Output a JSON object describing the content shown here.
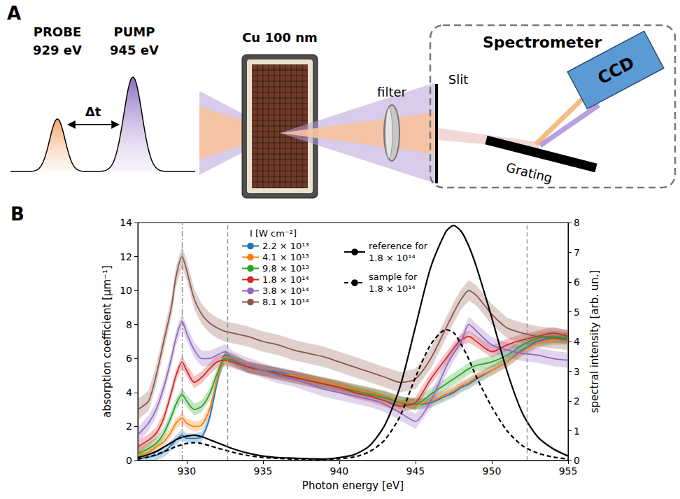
{
  "panel_a": {
    "label": "A",
    "probe": "PROBE",
    "probe_energy": "929 eV",
    "pump": "PUMP",
    "pump_energy": "945 eV",
    "delay": "Δt",
    "sample": "Cu 100 nm",
    "filter": "filter",
    "slit": "Slit",
    "spectrometer": "Spectrometer",
    "detector": "CCD",
    "grating": "Grating"
  },
  "chart_data": {
    "type": "line",
    "panel_label": "B",
    "x_label": "Photon energy [eV]",
    "y_label": "absorption coefficient [μm⁻¹]",
    "y2_label": "spectral intensity [arb. un.]",
    "legend_title": "I [W cm⁻²]",
    "legend": "top",
    "grid": false,
    "xlim": [
      926.8,
      955
    ],
    "xticks": [
      930,
      935,
      940,
      945,
      950,
      955
    ],
    "ylim": [
      0,
      14
    ],
    "yticks": [
      0,
      2,
      4,
      6,
      8,
      10,
      12,
      14
    ],
    "y2lim": [
      0,
      8
    ],
    "y2ticks": [
      0,
      1,
      2,
      3,
      4,
      5,
      6,
      7,
      8
    ],
    "vlines": [
      {
        "x": 929.7,
        "line_style": "dashdot"
      },
      {
        "x": 932.7,
        "line_style": "dashed"
      },
      {
        "x": 952.3,
        "line_style": "dashed"
      }
    ],
    "x": [
      926.8,
      927.5,
      928,
      928.5,
      929,
      929.3,
      929.7,
      930,
      930.5,
      931,
      931.5,
      932,
      932.5,
      933,
      934,
      935,
      936,
      937,
      938,
      939,
      940,
      941,
      942,
      943,
      944,
      945,
      946,
      947,
      947.5,
      948,
      948.5,
      949,
      950,
      951,
      952,
      953,
      954,
      955
    ],
    "series": [
      {
        "name": "2.2 × 10¹³",
        "color": "#1f77b4",
        "axis": "y",
        "line_style": "solid",
        "error": 0.3,
        "values": [
          0.1,
          0.2,
          0.3,
          0.5,
          0.9,
          1.2,
          1.5,
          1.3,
          1.3,
          1.4,
          2.5,
          4.6,
          6.2,
          6.0,
          5.5,
          5.3,
          5.2,
          5.0,
          4.8,
          4.6,
          4.4,
          4.2,
          4.0,
          3.8,
          3.5,
          3.3,
          3.4,
          3.8,
          4.0,
          4.3,
          4.5,
          4.8,
          5.3,
          5.8,
          6.5,
          7.0,
          7.2,
          7.2
        ]
      },
      {
        "name": "4.1 × 10¹³",
        "color": "#ff7f0e",
        "axis": "y",
        "line_style": "solid",
        "error": 0.3,
        "values": [
          0.3,
          0.5,
          0.8,
          1.1,
          1.7,
          2.2,
          2.5,
          2.2,
          2.0,
          2.1,
          3.0,
          4.8,
          6.1,
          6.0,
          5.5,
          5.3,
          5.1,
          5.0,
          4.8,
          4.6,
          4.4,
          4.2,
          4.0,
          3.8,
          3.5,
          3.3,
          3.5,
          3.9,
          4.1,
          4.4,
          4.6,
          4.9,
          5.3,
          5.8,
          6.4,
          6.9,
          7.1,
          7.1
        ]
      },
      {
        "name": "9.8 × 10¹³",
        "color": "#2ca02c",
        "axis": "y",
        "line_style": "solid",
        "error": 0.35,
        "values": [
          0.4,
          0.7,
          1.0,
          1.6,
          2.6,
          3.3,
          3.9,
          3.5,
          3.0,
          3.2,
          3.9,
          5.1,
          6.0,
          5.9,
          5.5,
          5.3,
          5.1,
          4.9,
          4.7,
          4.5,
          4.3,
          4.1,
          3.9,
          3.7,
          3.4,
          3.3,
          3.9,
          4.5,
          4.8,
          5.1,
          5.4,
          5.6,
          5.8,
          6.2,
          6.8,
          7.2,
          7.3,
          7.2
        ]
      },
      {
        "name": "1.8 × 10¹⁴",
        "color": "#d62728",
        "axis": "y",
        "line_style": "solid",
        "error": 0.35,
        "values": [
          0.8,
          1.2,
          1.6,
          2.5,
          4.0,
          5.0,
          5.8,
          5.3,
          4.6,
          4.9,
          5.4,
          5.8,
          5.9,
          5.8,
          5.5,
          5.3,
          5.1,
          4.9,
          4.7,
          4.5,
          4.3,
          4.0,
          3.8,
          3.5,
          3.2,
          3.4,
          4.8,
          6.0,
          6.6,
          7.1,
          7.3,
          7.0,
          6.4,
          6.8,
          7.1,
          7.3,
          7.5,
          7.3
        ]
      },
      {
        "name": "3.8 × 10¹⁴",
        "color": "#9467bd",
        "axis": "y",
        "line_style": "solid",
        "error": 0.45,
        "values": [
          1.5,
          2.2,
          3.0,
          4.3,
          6.0,
          7.2,
          8.2,
          7.5,
          6.5,
          6.0,
          6.0,
          6.2,
          6.4,
          6.0,
          5.6,
          5.3,
          5.0,
          4.8,
          4.5,
          4.2,
          4.0,
          3.8,
          3.6,
          3.3,
          2.8,
          2.3,
          3.5,
          5.5,
          6.3,
          7.0,
          8.0,
          7.6,
          6.8,
          6.5,
          6.3,
          6.2,
          6.0,
          5.9
        ]
      },
      {
        "name": "8.1 × 10¹⁴",
        "color": "#8c564b",
        "axis": "y",
        "line_style": "solid",
        "error": 0.6,
        "values": [
          3.0,
          3.5,
          5.0,
          7.0,
          9.0,
          10.8,
          12.0,
          11.2,
          9.5,
          8.6,
          8.1,
          7.8,
          7.6,
          7.5,
          7.3,
          7.0,
          6.8,
          6.5,
          6.3,
          6.1,
          5.8,
          5.5,
          5.2,
          4.9,
          4.6,
          4.8,
          6.0,
          7.8,
          8.7,
          9.5,
          10.0,
          9.7,
          8.6,
          7.8,
          7.5,
          7.3,
          7.2,
          7.1
        ]
      },
      {
        "name": "reference for\n1.8 × 10¹⁴",
        "color": "#000000",
        "axis": "y2",
        "line_style": "solid",
        "values": [
          0.1,
          0.2,
          0.3,
          0.45,
          0.6,
          0.7,
          0.78,
          0.82,
          0.85,
          0.8,
          0.7,
          0.6,
          0.5,
          0.4,
          0.25,
          0.15,
          0.1,
          0.08,
          0.06,
          0.05,
          0.1,
          0.2,
          0.5,
          1.2,
          2.5,
          4.5,
          6.5,
          7.7,
          7.9,
          7.7,
          7.2,
          6.5,
          4.8,
          3.0,
          1.6,
          0.8,
          0.4,
          0.15
        ]
      },
      {
        "name": "sample for\n1.8 × 10¹⁴",
        "color": "#000000",
        "axis": "y2",
        "line_style": "dashed",
        "values": [
          0.05,
          0.12,
          0.2,
          0.3,
          0.4,
          0.47,
          0.53,
          0.57,
          0.6,
          0.57,
          0.5,
          0.42,
          0.35,
          0.28,
          0.17,
          0.1,
          0.07,
          0.05,
          0.04,
          0.04,
          0.06,
          0.12,
          0.3,
          0.7,
          1.5,
          2.8,
          3.9,
          4.4,
          4.3,
          3.9,
          3.4,
          2.8,
          1.8,
          1.0,
          0.5,
          0.25,
          0.12,
          0.05
        ]
      }
    ]
  }
}
